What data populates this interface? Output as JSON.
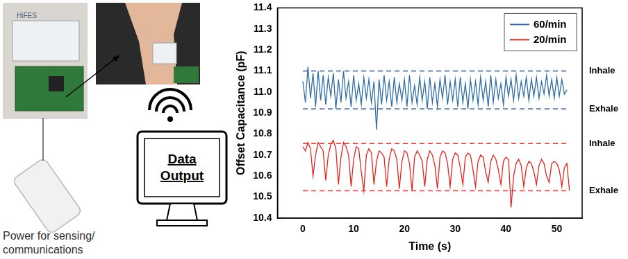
{
  "chart_data": {
    "type": "line",
    "y_label": "Offset Capacitance (pF)",
    "x_label": "Time (s)",
    "xlim": [
      -5,
      55
    ],
    "xticks": [
      0,
      10,
      20,
      30,
      40,
      50
    ],
    "ylim": [
      10.4,
      11.4
    ],
    "yticks": [
      10.4,
      10.5,
      10.6,
      10.7,
      10.8,
      10.9,
      {
        "value": 11,
        "label": "11.0"
      },
      11.1,
      11.2,
      11.3,
      11.4
    ],
    "grid": false,
    "legend": "upper right",
    "x": [
      0,
      0.5,
      1,
      1.5,
      2,
      2.5,
      3,
      3.5,
      4,
      4.5,
      5,
      5.5,
      6,
      6.5,
      7,
      7.5,
      8,
      8.5,
      9,
      9.5,
      10,
      10.5,
      11,
      11.5,
      12,
      12.5,
      13,
      13.5,
      14,
      14.5,
      15,
      15.5,
      16,
      16.5,
      17,
      17.5,
      18,
      18.5,
      19,
      19.5,
      20,
      20.5,
      21,
      21.5,
      22,
      22.5,
      23,
      23.5,
      24,
      24.5,
      25,
      25.5,
      26,
      26.5,
      27,
      27.5,
      28,
      28.5,
      29,
      29.5,
      30,
      30.5,
      31,
      31.5,
      32,
      32.5,
      33,
      33.5,
      34,
      34.5,
      35,
      35.5,
      36,
      36.5,
      37,
      37.5,
      38,
      38.5,
      39,
      39.5,
      40,
      40.5,
      41,
      41.5,
      42,
      42.5,
      43,
      43.5,
      44,
      44.5,
      45,
      45.5,
      46,
      46.5,
      47,
      47.5,
      48,
      48.5,
      49,
      49.5,
      50,
      50.5,
      51,
      51.5,
      52,
      52.5
    ],
    "series": [
      {
        "name": "60/min",
        "color": "#2f6ea5",
        "values": [
          11.05,
          10.95,
          11.12,
          10.97,
          11.09,
          10.93,
          11.1,
          10.96,
          11.08,
          10.94,
          11.07,
          10.98,
          11.09,
          10.92,
          11.06,
          10.95,
          11.1,
          10.97,
          11.05,
          10.93,
          11.08,
          10.96,
          11.04,
          10.94,
          11.07,
          10.97,
          11.06,
          10.95,
          11.05,
          10.82,
          11.06,
          10.94,
          11.08,
          10.96,
          11.05,
          10.93,
          11.07,
          10.95,
          11.04,
          10.96,
          11.06,
          10.93,
          11.08,
          10.95,
          11.03,
          10.94,
          11.07,
          10.96,
          11.05,
          10.92,
          11.07,
          10.95,
          11.04,
          10.93,
          11.06,
          10.97,
          11.08,
          10.94,
          11.05,
          10.96,
          11.06,
          10.93,
          11.07,
          10.95,
          11.04,
          10.92,
          11.06,
          10.96,
          11.05,
          10.94,
          11.07,
          10.96,
          11.05,
          10.93,
          11.08,
          10.95,
          11.06,
          10.97,
          11.04,
          10.94,
          11.07,
          10.98,
          11.06,
          10.96,
          11.08,
          10.97,
          11.05,
          10.98,
          11.07,
          10.96,
          11.06,
          10.98,
          11.07,
          10.97,
          11.05,
          10.99,
          11.08,
          10.98,
          11.06,
          10.97,
          11.07,
          10.98,
          11.06,
          10.99,
          11.01,
          null
        ]
      },
      {
        "name": "20/min",
        "color": "#e8231c",
        "values": [
          10.74,
          10.72,
          10.76,
          10.73,
          10.6,
          10.7,
          10.76,
          10.74,
          10.72,
          10.58,
          10.7,
          10.75,
          10.77,
          10.73,
          10.56,
          10.69,
          10.76,
          10.74,
          10.7,
          10.55,
          10.68,
          10.74,
          10.73,
          10.62,
          10.53,
          10.7,
          10.73,
          10.71,
          10.56,
          10.67,
          10.72,
          10.71,
          10.69,
          10.55,
          10.68,
          10.73,
          10.72,
          10.68,
          10.54,
          10.67,
          10.72,
          10.71,
          10.66,
          10.53,
          10.69,
          10.72,
          10.7,
          10.67,
          10.55,
          10.68,
          10.72,
          10.7,
          10.65,
          10.54,
          10.69,
          10.72,
          10.71,
          10.66,
          10.55,
          10.68,
          10.71,
          10.7,
          10.64,
          10.56,
          10.69,
          10.71,
          10.7,
          10.63,
          10.55,
          10.67,
          10.7,
          10.69,
          10.62,
          10.57,
          10.67,
          10.7,
          10.68,
          10.63,
          10.56,
          10.67,
          10.69,
          10.68,
          10.45,
          10.6,
          10.66,
          10.68,
          10.65,
          10.55,
          10.64,
          10.67,
          10.66,
          10.62,
          10.56,
          10.65,
          10.68,
          10.66,
          10.6,
          10.57,
          10.66,
          10.67,
          10.66,
          10.63,
          10.55,
          10.64,
          10.66,
          10.53
        ]
      }
    ],
    "reference_lines": [
      {
        "y": 11.1,
        "x": [
          0,
          52
        ],
        "label": "Inhale",
        "color": "#2f5597",
        "line_style": "dashed"
      },
      {
        "y": 10.92,
        "x": [
          0,
          52
        ],
        "label": "Exhale",
        "color": "#2f5597",
        "line_style": "dashed"
      },
      {
        "y": 10.755,
        "x": [
          0,
          52
        ],
        "label": "Inhale",
        "color": "#ff3030",
        "line_style": "dashed"
      },
      {
        "y": 10.53,
        "x": [
          0,
          52
        ],
        "label": "Exhale",
        "color": "#ff3030",
        "line_style": "dashed"
      }
    ]
  },
  "diagram": {
    "device_label": "HiFES",
    "monitor_label": "Data Output",
    "power_label": [
      "Power for sensing/",
      "communications"
    ]
  }
}
